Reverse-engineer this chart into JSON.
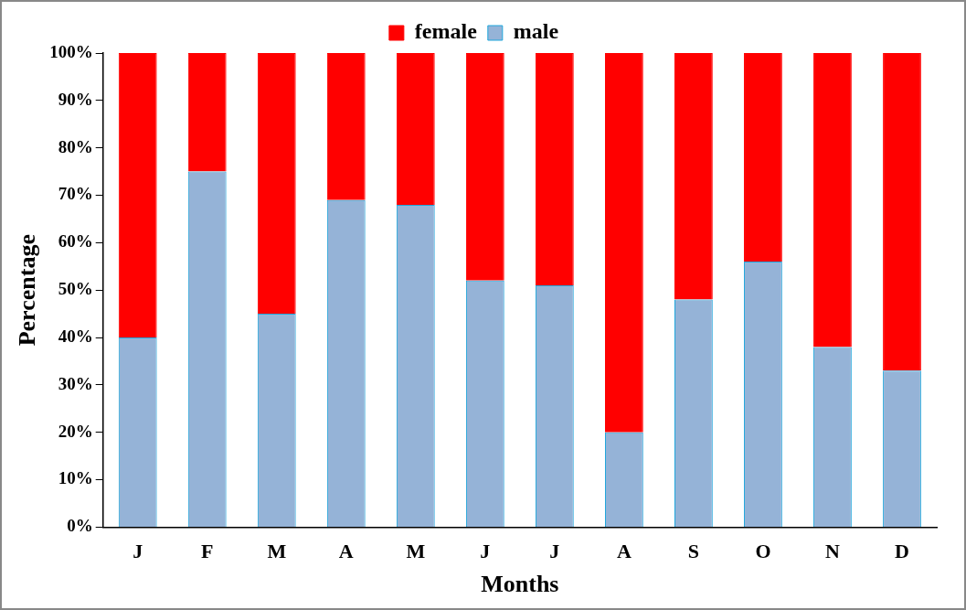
{
  "chart_data": {
    "type": "bar",
    "stacked": true,
    "xlabel": "Months",
    "ylabel": "Percentage",
    "categories": [
      "J",
      "F",
      "M",
      "A",
      "M",
      "J",
      "J",
      "A",
      "S",
      "O",
      "N",
      "D"
    ],
    "series": [
      {
        "name": "male",
        "color": "#95b3d7",
        "values": [
          40,
          75,
          45,
          69,
          68,
          52,
          51,
          20,
          48,
          56,
          38,
          33
        ]
      },
      {
        "name": "female",
        "color": "#ff0000",
        "values": [
          60,
          25,
          55,
          31,
          32,
          48,
          49,
          80,
          52,
          44,
          62,
          67
        ]
      }
    ],
    "ylim": [
      0,
      100
    ],
    "yticks": [
      {
        "value": 0,
        "label": "0%"
      },
      {
        "value": 10,
        "label": "10%"
      },
      {
        "value": 20,
        "label": "20%"
      },
      {
        "value": 30,
        "label": "30%"
      },
      {
        "value": 40,
        "label": "40%"
      },
      {
        "value": 50,
        "label": "50%"
      },
      {
        "value": 60,
        "label": "60%"
      },
      {
        "value": 70,
        "label": "70%"
      },
      {
        "value": 80,
        "label": "80%"
      },
      {
        "value": 90,
        "label": "90%"
      },
      {
        "value": 100,
        "label": "100%"
      }
    ],
    "grid": false,
    "legend": "top"
  }
}
